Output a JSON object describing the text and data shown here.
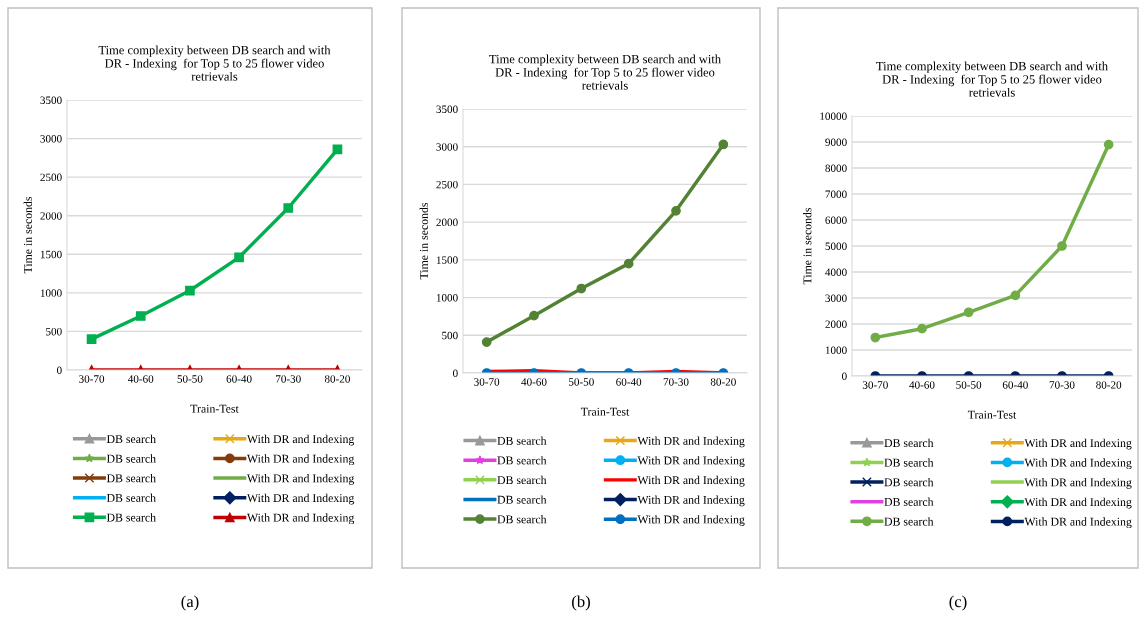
{
  "chart_data": [
    {
      "type": "line",
      "title": "Time complexity between DB search and with\nDR - Indexing  for Top 5 to 25 flower video\nretrievals",
      "xlabel": "Train-Test",
      "ylabel": "Time in seconds",
      "categories": [
        "30-70",
        "40-60",
        "50-50",
        "60-40",
        "70-30",
        "80-20"
      ],
      "ylim": [
        0,
        3500
      ],
      "yticks": [
        0,
        500,
        1000,
        1500,
        2000,
        2500,
        3000,
        3500
      ],
      "grid": "y",
      "legend": "bottom",
      "annotations": [
        "(a)"
      ],
      "series": [
        {
          "name": "DB search",
          "color": "#999999",
          "marker": "triangle",
          "values": [
            null,
            null,
            null,
            null,
            null,
            null
          ]
        },
        {
          "name": "With DR and Indexing",
          "color": "#e6a817",
          "marker": "cross",
          "values": [
            null,
            null,
            null,
            null,
            null,
            null
          ]
        },
        {
          "name": "DB search",
          "color": "#70ad47",
          "marker": "star",
          "values": [
            null,
            null,
            null,
            null,
            null,
            null
          ]
        },
        {
          "name": "With DR and Indexing",
          "color": "#843c0c",
          "marker": "circle",
          "values": [
            null,
            null,
            null,
            null,
            null,
            null
          ]
        },
        {
          "name": "DB search",
          "color": "#843c0c",
          "marker": "cross",
          "values": [
            null,
            null,
            null,
            null,
            null,
            null
          ]
        },
        {
          "name": "With DR and Indexing",
          "color": "#70ad47",
          "marker": "none",
          "values": [
            null,
            null,
            null,
            null,
            null,
            null
          ]
        },
        {
          "name": "DB search",
          "color": "#00b0f0",
          "marker": "none",
          "values": [
            null,
            null,
            null,
            null,
            null,
            null
          ]
        },
        {
          "name": "With DR and Indexing",
          "color": "#002060",
          "marker": "diamond",
          "values": [
            null,
            null,
            null,
            null,
            null,
            null
          ]
        },
        {
          "name": "DB search",
          "color": "#00b050",
          "marker": "square",
          "values": [
            400,
            700,
            1030,
            1460,
            2100,
            2860
          ]
        },
        {
          "name": "With DR and Indexing",
          "color": "#c00000",
          "marker": "triangle",
          "values": [
            0,
            0,
            0,
            0,
            0,
            0
          ]
        }
      ]
    },
    {
      "type": "line",
      "title": "Time complexity between DB search and with\nDR - Indexing  for Top 5 to 25 flower video\nretrievals",
      "xlabel": "Train-Test",
      "ylabel": "Time in seconds",
      "categories": [
        "30-70",
        "40-60",
        "50-50",
        "60-40",
        "70-30",
        "80-20"
      ],
      "ylim": [
        0,
        3500
      ],
      "yticks": [
        0,
        500,
        1000,
        1500,
        2000,
        2500,
        3000,
        3500
      ],
      "grid": "y",
      "legend": "bottom",
      "annotations": [
        "(b)"
      ],
      "series": [
        {
          "name": "DB search",
          "color": "#999999",
          "marker": "triangle",
          "values": [
            null,
            null,
            null,
            null,
            null,
            null
          ]
        },
        {
          "name": "With DR and Indexing",
          "color": "#e6a817",
          "marker": "cross",
          "values": [
            null,
            null,
            null,
            null,
            null,
            null
          ]
        },
        {
          "name": "DB search",
          "color": "#e040e0",
          "marker": "star",
          "values": [
            null,
            null,
            null,
            null,
            null,
            null
          ]
        },
        {
          "name": "With DR and Indexing",
          "color": "#00b0f0",
          "marker": "circle",
          "values": [
            null,
            null,
            null,
            null,
            null,
            null
          ]
        },
        {
          "name": "DB search",
          "color": "#92d050",
          "marker": "cross",
          "values": [
            null,
            null,
            null,
            null,
            null,
            null
          ]
        },
        {
          "name": "With DR and Indexing",
          "color": "#ff0000",
          "marker": "none",
          "values": [
            20,
            30,
            0,
            0,
            20,
            0
          ]
        },
        {
          "name": "DB search",
          "color": "#0070c0",
          "marker": "none",
          "values": [
            null,
            null,
            null,
            null,
            null,
            null
          ]
        },
        {
          "name": "With DR and Indexing",
          "color": "#002060",
          "marker": "diamond",
          "values": [
            null,
            null,
            null,
            null,
            null,
            null
          ]
        },
        {
          "name": "DB search",
          "color": "#548235",
          "marker": "circle",
          "values": [
            410,
            760,
            1120,
            1450,
            2150,
            3030
          ]
        },
        {
          "name": "With DR and Indexing",
          "color": "#0070c0",
          "marker": "circle",
          "values": [
            0,
            0,
            0,
            0,
            0,
            0
          ]
        }
      ]
    },
    {
      "type": "line",
      "title": "Time complexity between DB search and with\nDR - Indexing  for Top 5 to 25 flower video\nretrievals",
      "xlabel": "Train-Test",
      "ylabel": "Time in seconds",
      "categories": [
        "30-70",
        "40-60",
        "50-50",
        "60-40",
        "70-30",
        "80-20"
      ],
      "ylim": [
        0,
        10000
      ],
      "yticks": [
        0,
        1000,
        2000,
        3000,
        4000,
        5000,
        6000,
        7000,
        8000,
        9000,
        10000
      ],
      "grid": "y",
      "legend": "bottom",
      "annotations": [
        "(c)"
      ],
      "series": [
        {
          "name": "DB search",
          "color": "#999999",
          "marker": "triangle",
          "values": [
            null,
            null,
            null,
            null,
            null,
            null
          ]
        },
        {
          "name": "With DR and Indexing",
          "color": "#e6a817",
          "marker": "cross",
          "values": [
            null,
            null,
            null,
            null,
            null,
            null
          ]
        },
        {
          "name": "DB search",
          "color": "#92d050",
          "marker": "star",
          "values": [
            null,
            null,
            null,
            null,
            null,
            null
          ]
        },
        {
          "name": "With DR and Indexing",
          "color": "#00b0f0",
          "marker": "circle",
          "values": [
            null,
            null,
            null,
            null,
            null,
            null
          ]
        },
        {
          "name": "DB search",
          "color": "#002060",
          "marker": "cross",
          "values": [
            null,
            null,
            null,
            null,
            null,
            null
          ]
        },
        {
          "name": "With DR and Indexing",
          "color": "#92d050",
          "marker": "none",
          "values": [
            null,
            null,
            null,
            null,
            null,
            null
          ]
        },
        {
          "name": "DB search",
          "color": "#e040e0",
          "marker": "none",
          "values": [
            null,
            null,
            null,
            null,
            null,
            null
          ]
        },
        {
          "name": "With DR and Indexing",
          "color": "#00b050",
          "marker": "diamond",
          "values": [
            null,
            null,
            null,
            null,
            null,
            null
          ]
        },
        {
          "name": "DB search",
          "color": "#70ad47",
          "marker": "circle",
          "values": [
            1480,
            1820,
            2450,
            3100,
            5000,
            8900
          ]
        },
        {
          "name": "With DR and Indexing",
          "color": "#002060",
          "marker": "circle",
          "values": [
            0,
            0,
            0,
            0,
            0,
            0
          ]
        }
      ]
    }
  ]
}
